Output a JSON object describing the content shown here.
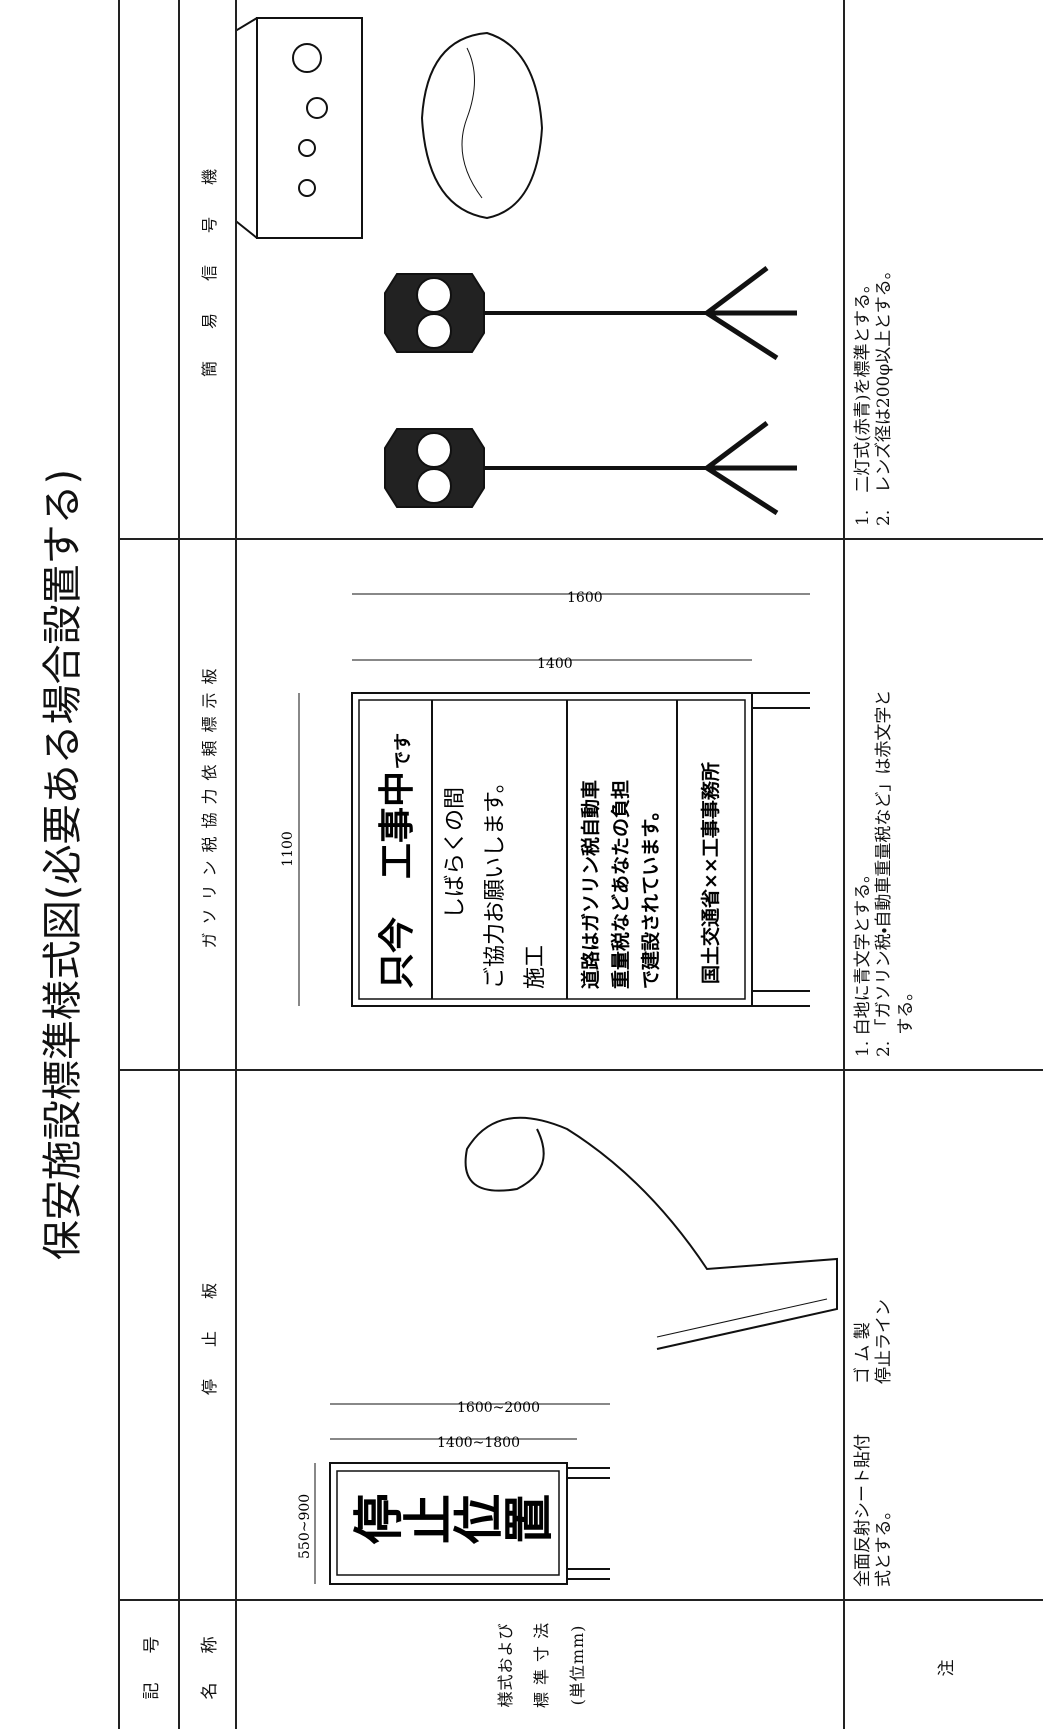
{
  "title": "保安施設標準様式図(必要ある場合設置する)",
  "row_labels": {
    "symbol": "記　号",
    "name": "名　称",
    "style": [
      "様式および",
      "標 準 寸 法",
      "(単位mm)"
    ],
    "note": "注"
  },
  "columns": [
    {
      "name": "停　止　板",
      "dimensions": [
        "550~900",
        "1400~1800",
        "1600~2000"
      ],
      "sign_text": "停止位置",
      "notes": [
        "全面反射シート貼付",
        "式とする。"
      ],
      "part_labels": [
        "ゴ ム 製",
        "停止ライン"
      ]
    },
    {
      "name": "ガソリン税協力依頼標示板",
      "dimensions": [
        "1100",
        "1400",
        "1600"
      ],
      "sign_lines": [
        "只今",
        "工事中",
        "です",
        "しばらくの間",
        "ご協力お願いします。",
        "施工",
        "道路はガソリン税自動車",
        "重量税などあなたの負担",
        "で建設されています。",
        "国土交通省××工事事務所"
      ],
      "notes": [
        "1. 白地に青文字とする。",
        "2. 「ガソリン税・自動車重量税など」は赤文字と",
        "　 する。"
      ]
    },
    {
      "name": "簡　易　信　号　機",
      "notes": [
        "1.　二灯式(赤青)を標準とする。",
        "2.　レンズ径は200φ以上とする。"
      ]
    }
  ]
}
